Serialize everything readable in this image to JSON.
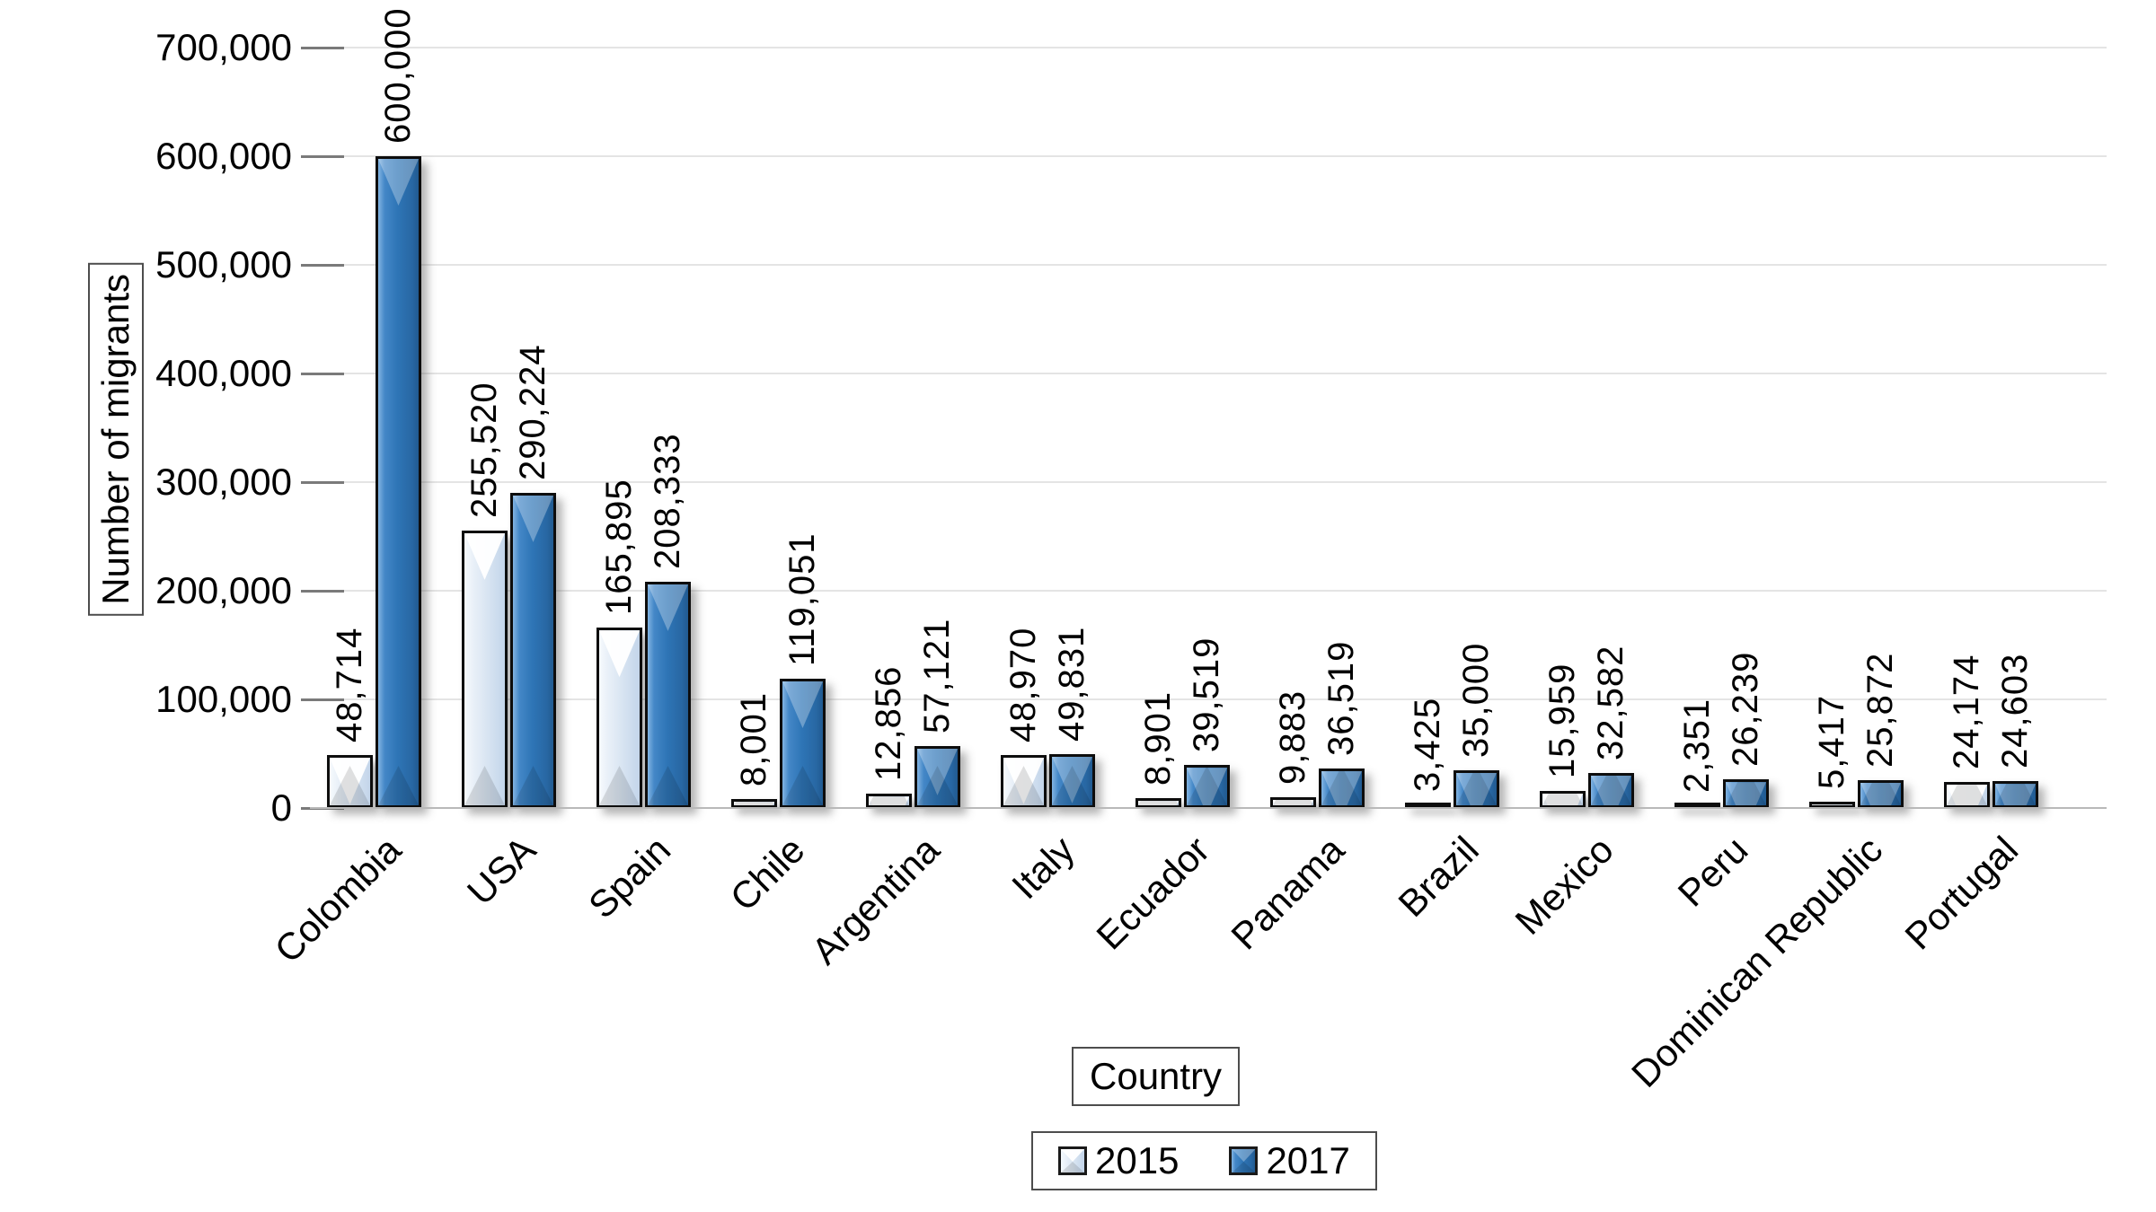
{
  "chart_data": {
    "type": "bar",
    "title": "",
    "xlabel": "Country",
    "ylabel": "Number of migrants",
    "ylim": [
      0,
      700000
    ],
    "ytick_step": 100000,
    "ytick_labels": [
      "0",
      "100,000",
      "200,000",
      "300,000",
      "400,000",
      "500,000",
      "600,000",
      "700,000"
    ],
    "grid": true,
    "legend_position": "bottom",
    "categories": [
      "Colombia",
      "USA",
      "Spain",
      "Chile",
      "Argentina",
      "Italy",
      "Ecuador",
      "Panama",
      "Brazil",
      "Mexico",
      "Peru",
      "Dominican Republic",
      "Portugal"
    ],
    "series": [
      {
        "name": "2015",
        "color": "#d9e5f2",
        "values": [
          48714,
          255520,
          165895,
          8001,
          12856,
          48970,
          8901,
          9883,
          3425,
          15959,
          2351,
          5417,
          24174
        ],
        "value_labels": [
          "48,714",
          "255,520",
          "165,895",
          "8,001",
          "12,856",
          "48,970",
          "8,901",
          "9,883",
          "3,425",
          "15,959",
          "2,351",
          "5,417",
          "24,174"
        ]
      },
      {
        "name": "2017",
        "color": "#2e75b6",
        "values": [
          600000,
          290224,
          208333,
          119051,
          57121,
          49831,
          39519,
          36519,
          35000,
          32582,
          26239,
          25872,
          24603
        ],
        "value_labels": [
          "600,000",
          "290,224",
          "208,333",
          "119,051",
          "57,121",
          "49,831",
          "39,519",
          "36,519",
          "35,000",
          "32,582",
          "26,239",
          "25,872",
          "24,603"
        ]
      }
    ]
  },
  "legend": {
    "items": [
      {
        "label": "2015"
      },
      {
        "label": "2017"
      }
    ]
  },
  "colors": {
    "series_2015": "#d9e5f2",
    "series_2017": "#2e75b6",
    "gridline": "#e4e4e4",
    "baseline": "#b9b9b9",
    "text": "#000000"
  }
}
